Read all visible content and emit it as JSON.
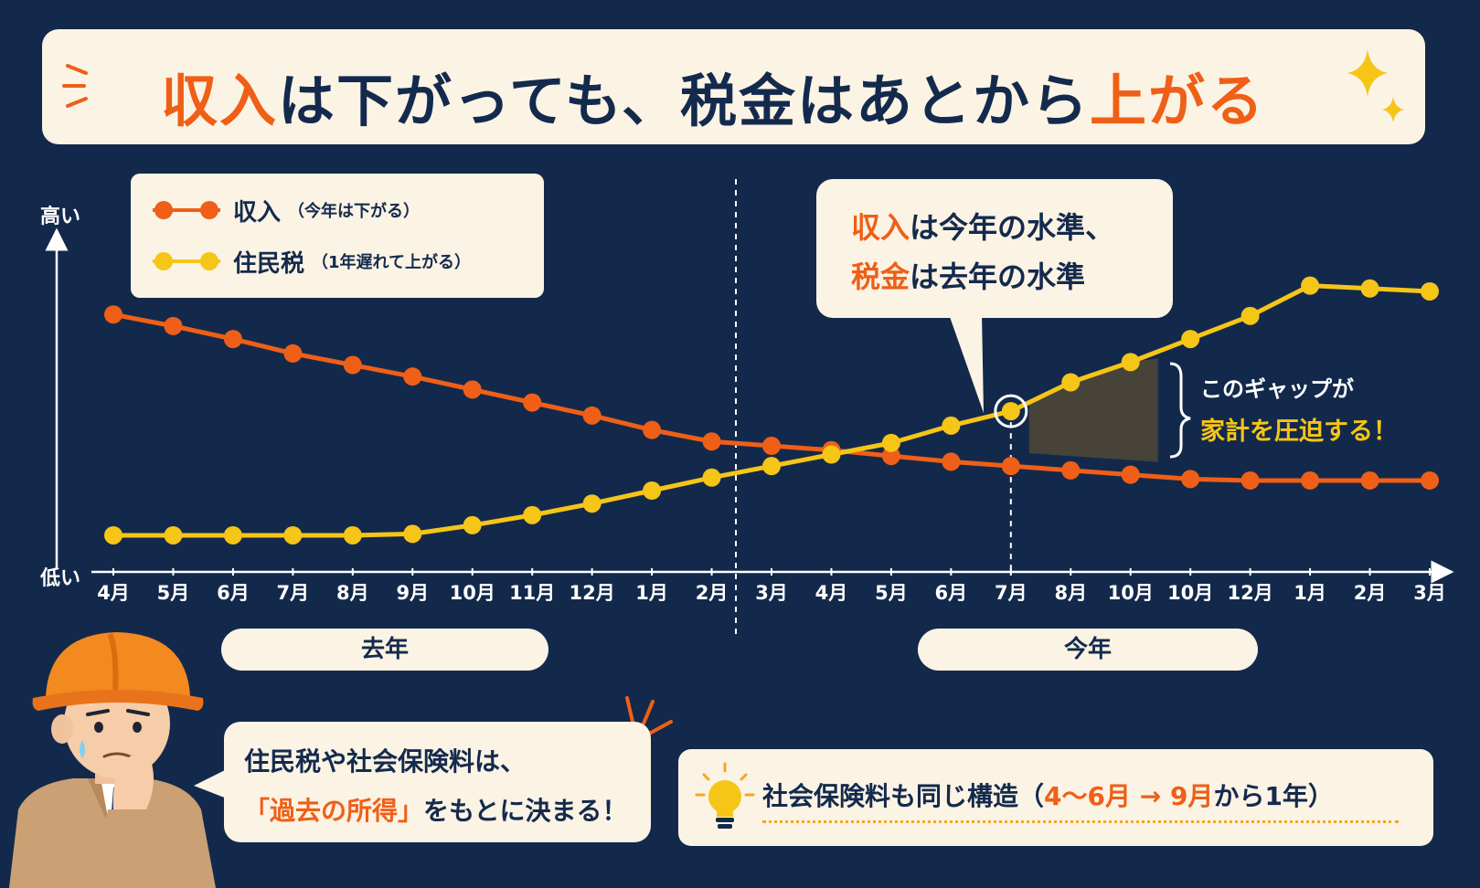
{
  "title": {
    "part1": "収入",
    "part2": "は下がっても、税金はあとから",
    "part3": "上がる"
  },
  "legend": {
    "income_label": "収入",
    "income_note": "（今年は下がる）",
    "tax_label": "住民税",
    "tax_note": "（1年遅れて上がる）"
  },
  "axis": {
    "y_high": "高い",
    "y_low": "低い"
  },
  "callout": {
    "line1_hl": "収入",
    "line1_rest": "は今年の水準、",
    "line2_hl": "税金",
    "line2_rest": "は去年の水準"
  },
  "gap_note": {
    "line1": "このギャップが",
    "line2": "家計を圧迫する！"
  },
  "year_labels": {
    "last_year": "去年",
    "this_year": "今年"
  },
  "speech": {
    "line1": "住民税や社会保険料は、",
    "line2_hl": "「過去の所得」",
    "line2_rest": "をもとに決まる！"
  },
  "note": {
    "text1": "社会保険料も同じ構造（",
    "hl1": "4～6月",
    "arrow": " → ",
    "hl2": "9月",
    "text2": "から1年）"
  },
  "colors": {
    "background": "#13294b",
    "income": "#ef5f17",
    "tax": "#f5c518",
    "panel": "#fbf3e4",
    "text_dark": "#142a4d"
  },
  "chart_data": {
    "type": "line",
    "x": [
      "4月",
      "5月",
      "6月",
      "7月",
      "8月",
      "9月",
      "10月",
      "11月",
      "12月",
      "1月",
      "2月",
      "3月",
      "4月",
      "5月",
      "6月",
      "7月",
      "8月",
      "10月",
      "10月",
      "12月",
      "1月",
      "2月",
      "3月"
    ],
    "series": [
      {
        "name": "収入",
        "values": [
          86,
          82,
          77.5,
          72.5,
          68.5,
          64.5,
          60,
          55.5,
          51,
          46,
          42,
          40.5,
          39,
          37,
          35,
          33.5,
          32,
          30.5,
          29,
          28.5,
          28.5,
          28.5,
          28.5
        ]
      },
      {
        "name": "住民税",
        "values": [
          9.5,
          9.5,
          9.5,
          9.5,
          9.5,
          10,
          13,
          16.5,
          20.5,
          25,
          29.5,
          33.5,
          37.5,
          41.5,
          47.5,
          52.5,
          62.5,
          69.5,
          77.5,
          85.5,
          96,
          95,
          94
        ]
      }
    ],
    "ylim": [
      0,
      100
    ],
    "y_tick_labels": [
      "低い",
      "高い"
    ],
    "grid": false,
    "highlight_index": 15
  }
}
